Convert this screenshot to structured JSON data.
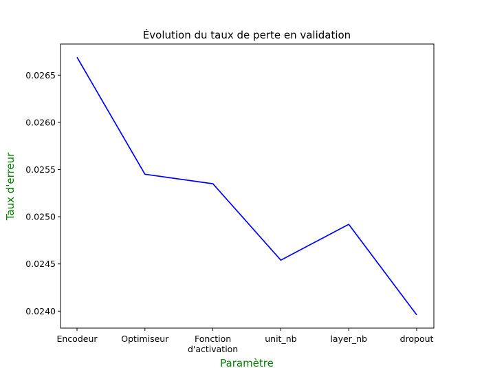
{
  "chart_data": {
    "type": "line",
    "title": "Évolution du taux de perte en validation",
    "xlabel": "Paramètre",
    "ylabel": "Taux d'erreur",
    "categories": [
      [
        "Encodeur"
      ],
      [
        "Optimiseur"
      ],
      [
        "Fonction",
        "d'activation"
      ],
      [
        "unit_nb"
      ],
      [
        "layer_nb"
      ],
      [
        "dropout"
      ]
    ],
    "series": [
      {
        "values": [
          0.02669,
          0.02545,
          0.02535,
          0.02454,
          0.02492,
          0.02396
        ],
        "color": "#0000ff"
      }
    ],
    "yticks": [
      "0.0240",
      "0.0245",
      "0.0250",
      "0.0255",
      "0.0260",
      "0.0265"
    ],
    "ylim": [
      0.02382,
      0.02683
    ],
    "grid": false,
    "label_color": "#008000"
  }
}
